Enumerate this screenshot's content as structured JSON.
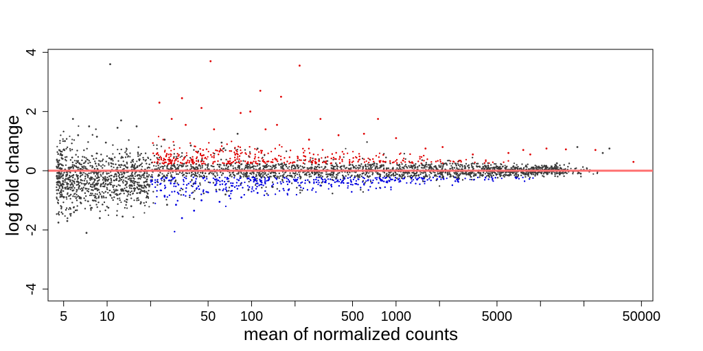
{
  "chart_data": {
    "type": "scatter",
    "title": "",
    "xlabel": "mean of normalized counts",
    "ylabel": "log fold change",
    "xscale": "log",
    "xlim": [
      3.9,
      60000
    ],
    "ylim": [
      -4.4,
      4.1
    ],
    "xticks": [
      {
        "value": 5,
        "label": "5"
      },
      {
        "value": 10,
        "label": "10"
      },
      {
        "value": 20,
        "label": ""
      },
      {
        "value": 50,
        "label": "50"
      },
      {
        "value": 100,
        "label": "100"
      },
      {
        "value": 200,
        "label": ""
      },
      {
        "value": 500,
        "label": "500"
      },
      {
        "value": 1000,
        "label": "1000"
      },
      {
        "value": 2000,
        "label": ""
      },
      {
        "value": 5000,
        "label": "5000"
      },
      {
        "value": 10000,
        "label": ""
      },
      {
        "value": 20000,
        "label": ""
      },
      {
        "value": 50000,
        "label": "50000"
      }
    ],
    "yticks": [
      {
        "value": -4,
        "label": "-4"
      },
      {
        "value": -2,
        "label": "-2"
      },
      {
        "value": 0,
        "label": "0"
      },
      {
        "value": 2,
        "label": "2"
      },
      {
        "value": 4,
        "label": "4"
      }
    ],
    "reference_line": {
      "y": 0,
      "color": "#ff6f6f"
    },
    "grid": false,
    "legend": "none",
    "series": [
      {
        "color": "#3a3a3a",
        "points": [
          [
            10.5,
            3.6
          ],
          [
            5.8,
            1.75
          ],
          [
            7.5,
            1.5
          ],
          [
            8.5,
            1.15
          ],
          [
            12.5,
            1.7
          ],
          [
            11.8,
            1.45
          ],
          [
            9.8,
            0.95
          ],
          [
            6.3,
            1.2
          ],
          [
            16,
            1.5
          ],
          [
            5.1,
            1.0
          ],
          [
            4.8,
            0.55
          ],
          [
            5.3,
            -1.7
          ],
          [
            7.2,
            -2.1
          ],
          [
            4.6,
            -1.75
          ],
          [
            5.9,
            -1.4
          ],
          [
            8.9,
            -1.6
          ],
          [
            12.8,
            -1.55
          ],
          [
            14.7,
            -1.2
          ],
          [
            10.2,
            -1.25
          ],
          [
            6.6,
            -1.1
          ],
          [
            25,
            1.05
          ],
          [
            38,
            0.85
          ],
          [
            62,
            0.95
          ],
          [
            80,
            1.25
          ],
          [
            110,
            0.75
          ],
          [
            26,
            -1.15
          ],
          [
            40,
            -0.95
          ],
          [
            66,
            -0.8
          ],
          [
            95,
            -0.65
          ],
          [
            140,
            -0.55
          ],
          [
            18000,
            0.8
          ],
          [
            9000,
            -0.05
          ],
          [
            19000,
            -0.1
          ],
          [
            13000,
            0.25
          ],
          [
            6500,
            0.15
          ],
          [
            4000,
            -0.15
          ],
          [
            2600,
            -0.05
          ],
          [
            3200,
            0.1
          ],
          [
            27000,
            0.6
          ],
          [
            30000,
            0.75
          ]
        ]
      },
      {
        "color": "#e00000",
        "points": [
          [
            52,
            3.7
          ],
          [
            215,
            3.55
          ],
          [
            23,
            2.3
          ],
          [
            33,
            2.45
          ],
          [
            45,
            2.12
          ],
          [
            115,
            2.7
          ],
          [
            160,
            2.5
          ],
          [
            84,
            1.95
          ],
          [
            98,
            2.0
          ],
          [
            300,
            1.75
          ],
          [
            750,
            1.75
          ],
          [
            55,
            1.4
          ],
          [
            35,
            1.55
          ],
          [
            28,
            1.75
          ],
          [
            125,
            1.4
          ],
          [
            150,
            1.55
          ],
          [
            400,
            1.2
          ],
          [
            600,
            1.25
          ],
          [
            1000,
            1.1
          ],
          [
            2100,
            0.8
          ],
          [
            7600,
            0.7
          ],
          [
            11000,
            0.75
          ],
          [
            15000,
            0.72
          ],
          [
            24000,
            0.7
          ],
          [
            44000,
            0.3
          ],
          [
            8500,
            0.55
          ],
          [
            6000,
            0.6
          ],
          [
            3400,
            0.55
          ],
          [
            1600,
            0.75
          ],
          [
            250,
            1.05
          ]
        ]
      },
      {
        "color": "#0000e0",
        "points": [
          [
            33,
            -1.6
          ],
          [
            25,
            -0.85
          ],
          [
            45,
            -1.0
          ],
          [
            60,
            -1.05
          ],
          [
            85,
            -0.9
          ],
          [
            110,
            -0.75
          ],
          [
            180,
            -0.65
          ],
          [
            300,
            -0.5
          ],
          [
            600,
            -0.45
          ],
          [
            900,
            -0.35
          ],
          [
            1400,
            -0.3
          ],
          [
            2000,
            -0.2
          ],
          [
            40,
            -1.35
          ],
          [
            30,
            -1.15
          ],
          [
            70,
            -0.85
          ]
        ]
      }
    ]
  }
}
